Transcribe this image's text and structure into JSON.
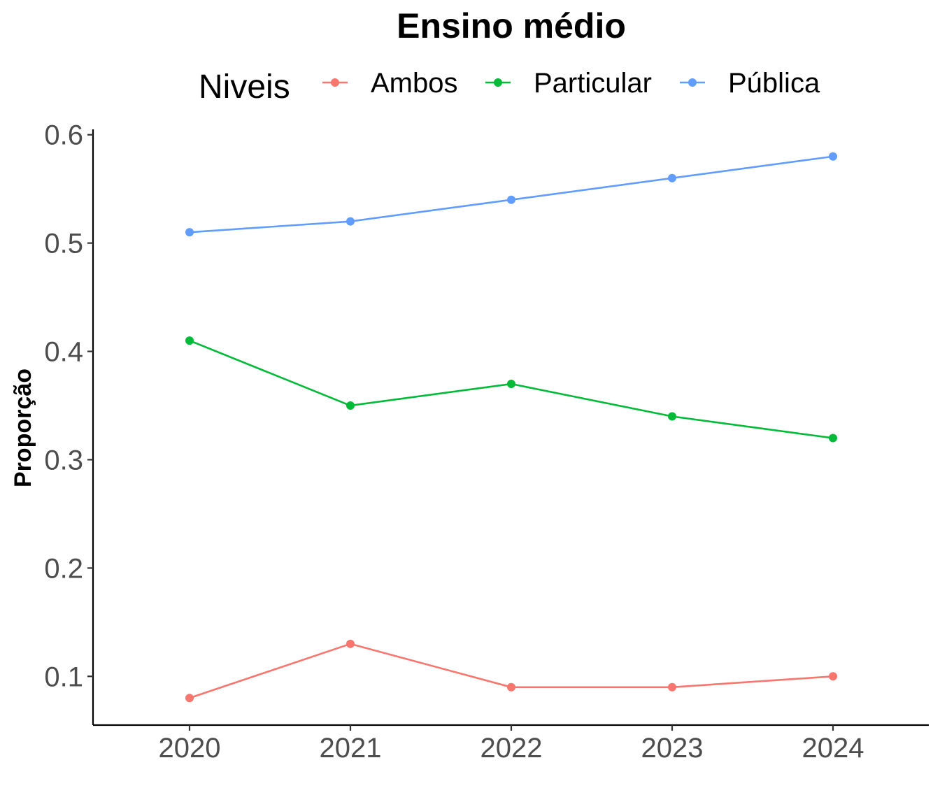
{
  "chart_data": {
    "type": "line",
    "title": "Ensino médio",
    "xlabel": "",
    "ylabel": "Proporção",
    "x": [
      "2020",
      "2021",
      "2022",
      "2023",
      "2024"
    ],
    "y_ticks": [
      "0.1",
      "0.2",
      "0.3",
      "0.4",
      "0.5",
      "0.6"
    ],
    "ylim": [
      0.055,
      0.605
    ],
    "grid": false,
    "legend": {
      "title": "Niveis",
      "position": "top"
    },
    "series": [
      {
        "name": "Ambos",
        "color": "#F8766D",
        "values": [
          0.08,
          0.13,
          0.09,
          0.09,
          0.1
        ]
      },
      {
        "name": "Particular",
        "color": "#00BA38",
        "values": [
          0.41,
          0.35,
          0.37,
          0.34,
          0.32
        ]
      },
      {
        "name": "Pública",
        "color": "#619CFF",
        "values": [
          0.51,
          0.52,
          0.54,
          0.56,
          0.58
        ]
      }
    ]
  }
}
